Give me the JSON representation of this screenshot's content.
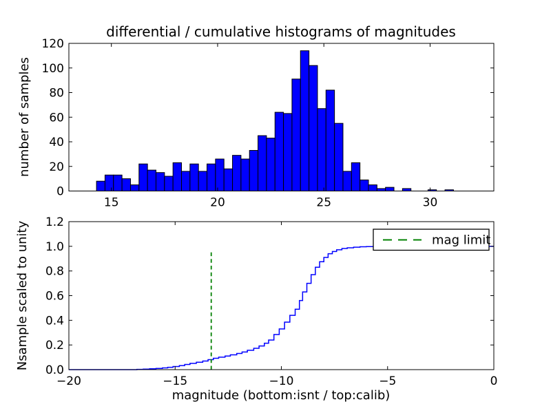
{
  "figure": {
    "title": "differential / cumulative histograms of magnitudes",
    "background_color": "#ffffff"
  },
  "chart_data": [
    {
      "type": "bar",
      "role": "differential-histogram-top",
      "title": "differential / cumulative histograms of magnitudes",
      "xlabel": "",
      "ylabel": "number of samples",
      "xlim": [
        13,
        33
      ],
      "ylim": [
        0,
        120
      ],
      "xticks": [
        15,
        20,
        25,
        30
      ],
      "xtick_labels": [
        "15",
        "20",
        "25",
        "30"
      ],
      "yticks": [
        0,
        20,
        40,
        60,
        80,
        100,
        120
      ],
      "ytick_labels": [
        "0",
        "20",
        "40",
        "60",
        "80",
        "100",
        "120"
      ],
      "grid": false,
      "bar_color": "#0000ff",
      "bar_edge_color": "#000000",
      "bin_start": 14.3,
      "bin_width": 0.4,
      "values": [
        8,
        13,
        13,
        10,
        5,
        22,
        17,
        15,
        12,
        23,
        16,
        22,
        16,
        22,
        26,
        18,
        29,
        26,
        33,
        45,
        43,
        64,
        63,
        91,
        114,
        102,
        67,
        82,
        55,
        16,
        23,
        9,
        5,
        2,
        3,
        0,
        2,
        0,
        0,
        1,
        0,
        1
      ]
    },
    {
      "type": "line",
      "role": "cumulative-histogram-bottom",
      "xlabel": "magnitude (bottom:isnt / top:calib)",
      "ylabel": "Nsample scaled to unity",
      "xlim": [
        -20,
        0
      ],
      "ylim": [
        0,
        1.2
      ],
      "xticks": [
        -20,
        -15,
        -10,
        -5,
        0
      ],
      "xtick_labels": [
        "−20",
        "−15",
        "−10",
        "−5",
        "0"
      ],
      "yticks": [
        0,
        0.2,
        0.4,
        0.6,
        0.8,
        1.0,
        1.2
      ],
      "ytick_labels": [
        "0.0",
        "0.2",
        "0.4",
        "0.6",
        "0.8",
        "1.0",
        "1.2"
      ],
      "grid": false,
      "line_color": "#0000ff",
      "line_style": "step",
      "steps": [
        [
          -20,
          0
        ],
        [
          -16.8,
          0.002
        ],
        [
          -16.5,
          0.004
        ],
        [
          -16.2,
          0.007
        ],
        [
          -15.9,
          0.01
        ],
        [
          -15.6,
          0.014
        ],
        [
          -15.35,
          0.019
        ],
        [
          -15.1,
          0.025
        ],
        [
          -14.8,
          0.033
        ],
        [
          -14.55,
          0.042
        ],
        [
          -14.3,
          0.051
        ],
        [
          -14.0,
          0.06
        ],
        [
          -13.7,
          0.07
        ],
        [
          -13.45,
          0.081
        ],
        [
          -13.2,
          0.092
        ],
        [
          -12.95,
          0.101
        ],
        [
          -12.65,
          0.11
        ],
        [
          -12.4,
          0.12
        ],
        [
          -12.1,
          0.131
        ],
        [
          -11.85,
          0.143
        ],
        [
          -11.6,
          0.157
        ],
        [
          -11.3,
          0.173
        ],
        [
          -11.05,
          0.192
        ],
        [
          -10.8,
          0.214
        ],
        [
          -10.6,
          0.24
        ],
        [
          -10.35,
          0.285
        ],
        [
          -10.1,
          0.33
        ],
        [
          -9.85,
          0.385
        ],
        [
          -9.6,
          0.44
        ],
        [
          -9.35,
          0.49
        ],
        [
          -9.15,
          0.56
        ],
        [
          -9.0,
          0.63
        ],
        [
          -8.8,
          0.7
        ],
        [
          -8.6,
          0.77
        ],
        [
          -8.4,
          0.83
        ],
        [
          -8.2,
          0.875
        ],
        [
          -8.0,
          0.91
        ],
        [
          -7.8,
          0.94
        ],
        [
          -7.6,
          0.958
        ],
        [
          -7.4,
          0.972
        ],
        [
          -7.15,
          0.982
        ],
        [
          -6.9,
          0.988
        ],
        [
          -6.6,
          0.993
        ],
        [
          -6.3,
          0.996
        ],
        [
          -6.0,
          0.998
        ],
        [
          -5.5,
          1.0
        ],
        [
          0,
          1.0
        ]
      ],
      "mag_limit_line": {
        "x": -13.3,
        "y_bottom": 0.0,
        "y_top": 0.97,
        "color": "#008000",
        "style": "dashed"
      },
      "legend": {
        "label": "mag limit",
        "position": "upper right",
        "sample_color": "#008000"
      }
    }
  ]
}
